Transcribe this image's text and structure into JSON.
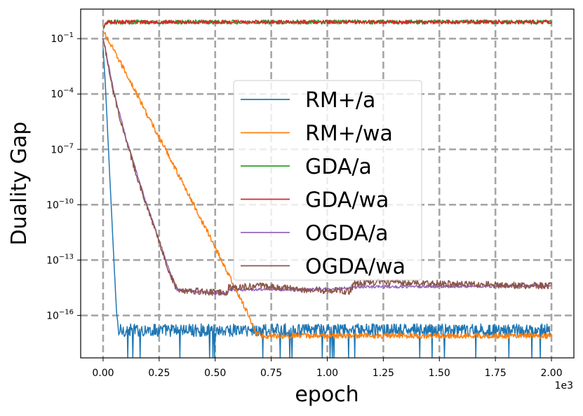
{
  "chart_data": {
    "type": "line",
    "title": "",
    "xlabel": "epoch",
    "ylabel": "Duality Gap",
    "x_offset_label": "1e3",
    "xscale": "linear",
    "yscale": "log",
    "xlim": [
      -0.1,
      2.1
    ],
    "ylim_log10": [
      -18.3,
      0.6
    ],
    "xticks": [
      0.0,
      0.25,
      0.5,
      0.75,
      1.0,
      1.25,
      1.5,
      1.75,
      2.0
    ],
    "xtick_labels": [
      "0.00",
      "0.25",
      "0.50",
      "0.75",
      "1.00",
      "1.25",
      "1.50",
      "1.75",
      "2.00"
    ],
    "yticks": [
      {
        "base": "10",
        "exp": "−1"
      },
      {
        "base": "10",
        "exp": "−4"
      },
      {
        "base": "10",
        "exp": "−7"
      },
      {
        "base": "10",
        "exp": "−10"
      },
      {
        "base": "10",
        "exp": "−13"
      },
      {
        "base": "10",
        "exp": "−16"
      }
    ],
    "grid": true,
    "legend_position": "center",
    "series": [
      {
        "name": "RM+/a",
        "color": "#1f77b4",
        "description": "drops from ~1e-1 to noise floor ~1e-17 by x~0.07 (thousand epochs), then fluctuates 1e-17 to 1e-16.5 with downward spikes",
        "points": [
          [
            0.0,
            -1.5
          ],
          [
            0.01,
            -3.5
          ],
          [
            0.02,
            -6.0
          ],
          [
            0.03,
            -8.5
          ],
          [
            0.04,
            -11.0
          ],
          [
            0.05,
            -13.5
          ],
          [
            0.06,
            -15.8
          ],
          [
            0.07,
            -17.0
          ]
        ],
        "noise_floor_log10": -16.8,
        "noise_amplitude": 0.35,
        "spike_bottom_log10": -18.3
      },
      {
        "name": "RM+/wa",
        "color": "#ff7f0e",
        "description": "linear decline on log scale from ~1e-0.6 at x=0 to ~1e-17 at x~0.68, then flat at ~1e-17.1",
        "points": [
          [
            0.0,
            -0.6
          ],
          [
            0.1,
            -2.8
          ],
          [
            0.2,
            -5.2
          ],
          [
            0.3,
            -7.5
          ],
          [
            0.4,
            -9.9
          ],
          [
            0.5,
            -12.3
          ],
          [
            0.6,
            -14.8
          ],
          [
            0.65,
            -16.0
          ],
          [
            0.68,
            -16.9
          ],
          [
            0.7,
            -17.1
          ],
          [
            2.0,
            -17.1
          ]
        ],
        "noise_amplitude": 0.15
      },
      {
        "name": "GDA/a",
        "color": "#2ca02c",
        "description": "flat near 1e-0.1 with small noise across all epochs",
        "points": [
          [
            0.0,
            -0.5
          ],
          [
            0.02,
            -0.1
          ],
          [
            2.0,
            -0.1
          ]
        ],
        "noise_amplitude": 0.12
      },
      {
        "name": "GDA/wa",
        "color": "#d62728",
        "description": "flat near 1e-0.1 with small noise, overlapping GDA/a",
        "points": [
          [
            0.0,
            -0.4
          ],
          [
            0.02,
            -0.1
          ],
          [
            2.0,
            -0.1
          ]
        ],
        "noise_amplitude": 0.1
      },
      {
        "name": "OGDA/a",
        "color": "#9467bd",
        "description": "steep drop then slower decline to ~1e-14.6 at x~0.33, plateau ~1e-14.8 to 1e-14.3, then ~1e-14.5 to 1e-14.4",
        "points": [
          [
            0.0,
            -1.0
          ],
          [
            0.05,
            -4.0
          ],
          [
            0.1,
            -6.3
          ],
          [
            0.15,
            -8.3
          ],
          [
            0.2,
            -10.2
          ],
          [
            0.25,
            -11.9
          ],
          [
            0.3,
            -13.7
          ],
          [
            0.33,
            -14.6
          ],
          [
            0.55,
            -14.85
          ],
          [
            0.56,
            -14.6
          ],
          [
            1.0,
            -14.6
          ],
          [
            1.1,
            -14.5
          ],
          [
            1.15,
            -14.45
          ],
          [
            2.0,
            -14.4
          ]
        ],
        "noise_amplitude": 0.08
      },
      {
        "name": "OGDA/wa",
        "color": "#8c564b",
        "description": "follows OGDA/a closely until ~0.55, then noisy around 1e-14.5 to 1e-14.2",
        "points": [
          [
            0.0,
            -1.0
          ],
          [
            0.05,
            -4.1
          ],
          [
            0.1,
            -6.4
          ],
          [
            0.15,
            -8.4
          ],
          [
            0.2,
            -10.3
          ],
          [
            0.25,
            -12.0
          ],
          [
            0.3,
            -13.8
          ],
          [
            0.33,
            -14.6
          ],
          [
            0.55,
            -14.8
          ],
          [
            0.56,
            -14.5
          ],
          [
            0.7,
            -14.4
          ],
          [
            0.9,
            -14.6
          ],
          [
            1.1,
            -14.7
          ],
          [
            1.12,
            -14.3
          ],
          [
            1.2,
            -14.2
          ],
          [
            1.6,
            -14.3
          ],
          [
            2.0,
            -14.4
          ]
        ],
        "noise_amplitude": 0.18
      }
    ]
  }
}
